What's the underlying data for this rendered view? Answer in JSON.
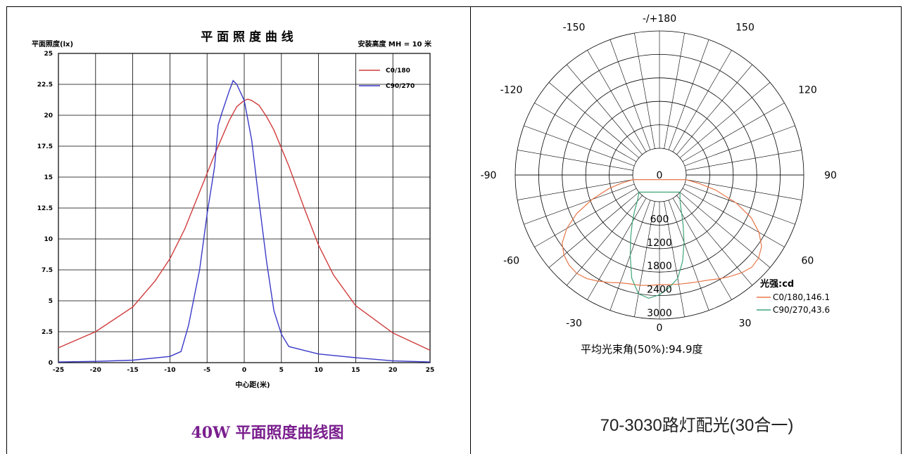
{
  "chart_data": [
    {
      "type": "line",
      "title": "平 面 照 度 曲 线",
      "ylabel": "平面照度(lx)",
      "xlabel": "中心距(米)",
      "annotation": "安装高度 MH = 10 米",
      "xlim": [
        -25,
        25
      ],
      "ylim": [
        0,
        25
      ],
      "xticks": [
        -25,
        -20,
        -15,
        -10,
        -5,
        0,
        5,
        10,
        15,
        20,
        25
      ],
      "yticks": [
        0,
        2.5,
        5,
        7.5,
        10,
        12.5,
        15,
        17.5,
        20,
        22.5,
        25
      ],
      "ytick_labels": [
        "0",
        "2.5",
        "5",
        "7.5",
        "10",
        "12.5",
        "15",
        "17.5",
        "20",
        "22.5",
        "25"
      ],
      "grid": true,
      "legend_position": "top-right",
      "series": [
        {
          "name": "C0/180",
          "color": "#d03c3c",
          "x": [
            -25,
            -20,
            -15,
            -12,
            -10,
            -8,
            -6,
            -4,
            -3,
            -2,
            -1,
            0,
            0.5,
            1,
            2,
            3,
            4,
            6,
            8,
            10,
            12,
            15,
            20,
            25
          ],
          "y": [
            1.2,
            2.5,
            4.5,
            6.6,
            8.4,
            10.8,
            13.8,
            16.8,
            18.2,
            19.6,
            20.7,
            21.2,
            21.3,
            21.2,
            20.8,
            19.9,
            18.8,
            15.9,
            12.6,
            9.5,
            7.1,
            4.6,
            2.4,
            1.0
          ]
        },
        {
          "name": "C90/270",
          "color": "#3a3ac8",
          "x": [
            -25,
            -20,
            -15,
            -10,
            -8.5,
            -7.5,
            -6,
            -5,
            -4,
            -3.5,
            -3,
            -2,
            -1.5,
            -1,
            0,
            1,
            2,
            3,
            4,
            5,
            6,
            8,
            10,
            15,
            20,
            25
          ],
          "y": [
            0.05,
            0.1,
            0.2,
            0.5,
            0.9,
            3.0,
            7.5,
            12.0,
            15.8,
            19.2,
            20.2,
            22.0,
            22.8,
            22.5,
            21.2,
            18.0,
            13.0,
            8.2,
            4.2,
            2.3,
            1.3,
            1.0,
            0.7,
            0.4,
            0.15,
            0.05
          ]
        }
      ]
    },
    {
      "type": "polar",
      "title": "",
      "unit_label": "光强:cd",
      "radial_ticks": [
        0,
        600,
        1200,
        1800,
        2400,
        3000
      ],
      "radial_max": 3000,
      "angle_labels": [
        "-/+180",
        "150",
        "120",
        "90",
        "60",
        "30",
        "0",
        "-30",
        "-60",
        "-90",
        "-120",
        "-150"
      ],
      "beam_angle_text": "平均光束角(50%):94.9度",
      "series": [
        {
          "name": "C0/180,146.1",
          "color": "#e8784a",
          "angles": [
            -80,
            -78,
            -75,
            -70,
            -65,
            -60,
            -55,
            -50,
            -45,
            -40,
            -35,
            -30,
            -25,
            -20,
            -15,
            -10,
            -5,
            0,
            5,
            10,
            15,
            20,
            25,
            30,
            35,
            40,
            45,
            50,
            55,
            60,
            65,
            70,
            75,
            78,
            80
          ],
          "r": [
            0,
            300,
            650,
            1150,
            1650,
            2050,
            2350,
            2500,
            2580,
            2600,
            2550,
            2450,
            2350,
            2250,
            2200,
            2180,
            2150,
            2120,
            2130,
            2150,
            2180,
            2220,
            2280,
            2380,
            2480,
            2580,
            2650,
            2620,
            2500,
            2250,
            1900,
            1400,
            800,
            350,
            0
          ]
        },
        {
          "name": "C90/270,43.6",
          "color": "#3fa57a",
          "angles": [
            -50,
            -45,
            -40,
            -35,
            -30,
            -25,
            -20,
            -15,
            -10,
            -5,
            0,
            5,
            10,
            15,
            20,
            25,
            30,
            35,
            40,
            45,
            50
          ],
          "r": [
            0,
            80,
            200,
            420,
            700,
            1050,
            1500,
            2050,
            2400,
            2480,
            2380,
            2200,
            2000,
            1600,
            1150,
            750,
            450,
            250,
            130,
            60,
            0
          ]
        }
      ]
    }
  ],
  "captions": {
    "left": "40W 平面照度曲线图",
    "right": "70-3030路灯配光(30合一)"
  }
}
